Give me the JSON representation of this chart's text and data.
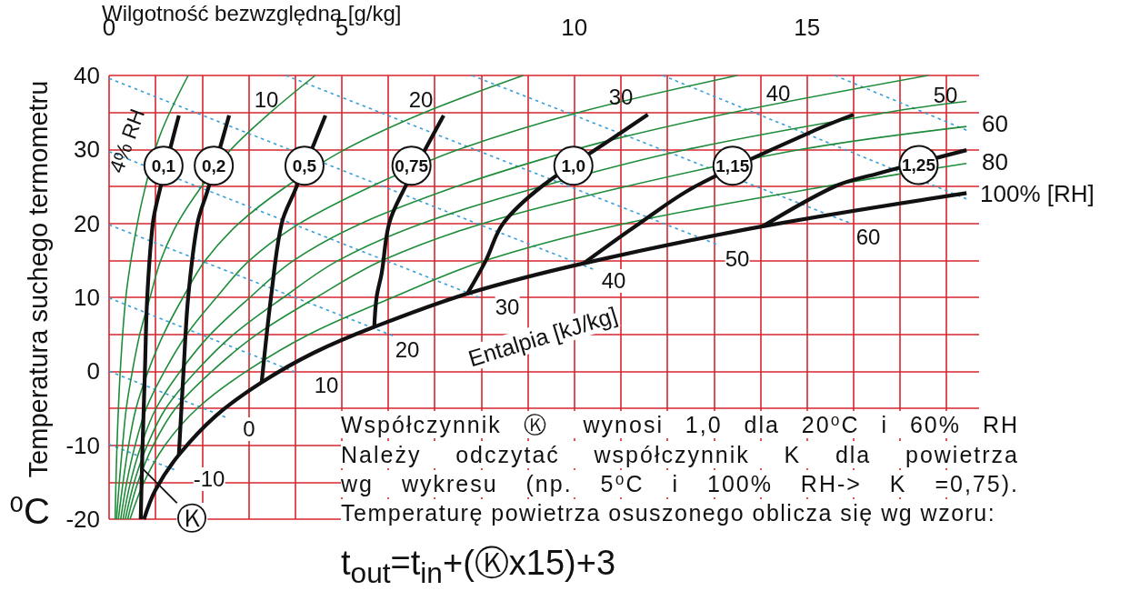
{
  "chart_data": {
    "type": "line",
    "xlabel": "Wilgotność bezwzględna [g/kg]",
    "ylabel": "Temperatura suchego termometru",
    "xlim": [
      0,
      18.7
    ],
    "xticks": [
      0,
      {
        "value": 1,
        "label": null
      },
      {
        "value": 2,
        "label": null
      },
      {
        "value": 3,
        "label": null
      },
      {
        "value": 4,
        "label": null
      },
      5,
      {
        "value": 6,
        "label": null
      },
      {
        "value": 7,
        "label": null
      },
      {
        "value": 8,
        "label": null
      },
      {
        "value": 9,
        "label": null
      },
      10,
      {
        "value": 11,
        "label": null
      },
      {
        "value": 12,
        "label": null
      },
      {
        "value": 13,
        "label": null
      },
      {
        "value": 14,
        "label": null
      },
      15,
      {
        "value": 16,
        "label": null
      },
      {
        "value": 17,
        "label": null
      },
      {
        "value": 18,
        "label": null
      }
    ],
    "ylim": [
      -20,
      40
    ],
    "yticks": [
      -20,
      {
        "value": -15,
        "label": null
      },
      -10,
      {
        "value": -5,
        "label": null
      },
      0,
      {
        "value": 5,
        "label": null
      },
      10,
      {
        "value": 15,
        "label": null
      },
      20,
      {
        "value": 25,
        "label": null
      },
      30,
      {
        "value": 35,
        "label": null
      },
      40
    ],
    "grid": true,
    "marker": "none",
    "series": [
      {
        "color": "#3b9fd6",
        "line_style": "dotted",
        "x": [
          0,
          1.4
        ],
        "values": [
          -9.9,
          -13.3
        ]
      },
      {
        "color": "#3b9fd6",
        "line_style": "dotted",
        "x": [
          0,
          2.5
        ],
        "values": [
          0,
          -6.2
        ]
      },
      {
        "color": "#3b9fd6",
        "line_style": "dotted",
        "x": [
          0,
          4.0
        ],
        "values": [
          9.9,
          -0.1
        ]
      },
      {
        "color": "#3b9fd6",
        "line_style": "dotted",
        "x": [
          0,
          6.1
        ],
        "values": [
          19.8,
          4.8
        ]
      },
      {
        "color": "#3b9fd6",
        "line_style": "dotted",
        "x": [
          0,
          7.95
        ],
        "values": [
          29.7,
          10.0
        ]
      },
      {
        "color": "#3b9fd6",
        "line_style": "dotted",
        "x": [
          0,
          10.4
        ],
        "values": [
          39.6,
          13.8
        ]
      },
      {
        "color": "#3b9fd6",
        "line_style": "dotted",
        "x": [
          3.8,
          13.05
        ],
        "values": [
          40,
          17.2
        ]
      },
      {
        "color": "#3b9fd6",
        "line_style": "dotted",
        "x": [
          7.8,
          15.9
        ],
        "values": [
          40,
          20.1
        ]
      },
      {
        "color": "#3b9fd6",
        "line_style": "dotted",
        "x": [
          11.9,
          18.43
        ],
        "values": [
          40,
          23.3
        ]
      },
      {
        "color": "#3b9fd6",
        "line_style": "dotted",
        "x": [
          15.6,
          18.43
        ],
        "values": [
          40,
          32.6
        ]
      },
      {
        "color": "#1e8c3a",
        "x": [
          0.13,
          0.17,
          0.24,
          0.36,
          0.55,
          0.76,
          1.1,
          1.7
        ],
        "values": [
          -20,
          -10,
          0,
          10,
          18,
          24.4,
          32,
          40
        ]
      },
      {
        "color": "#1e8c3a",
        "x": [
          0.16,
          0.22,
          0.29,
          0.37,
          0.5,
          0.66,
          0.88,
          1.11,
          1.47,
          1.99,
          2.62,
          3.47,
          4.43
        ],
        "values": [
          -20,
          -15,
          -10,
          -5,
          0,
          5,
          10,
          15,
          20,
          25,
          30,
          35,
          40
        ]
      },
      {
        "color": "#1e8c3a",
        "x": [
          0.2,
          0.3,
          0.42,
          0.58,
          0.84,
          1.17,
          1.59,
          2.07,
          2.79,
          3.81,
          5.07,
          6.78,
          8.9
        ],
        "values": [
          -20,
          -15,
          -10,
          -5,
          0,
          5,
          10,
          15,
          20,
          25,
          30,
          35,
          40
        ]
      },
      {
        "color": "#1e8c3a",
        "x": [
          0.25,
          0.38,
          0.56,
          0.8,
          1.19,
          1.67,
          2.31,
          3.02,
          4.1,
          5.64,
          7.52,
          10.09,
          13.5
        ],
        "values": [
          -20,
          -15,
          -10,
          -5,
          0,
          5,
          10,
          15,
          20,
          25,
          30,
          35,
          40
        ]
      },
      {
        "color": "#1e8c3a",
        "x": [
          0.3,
          0.46,
          0.69,
          1.01,
          1.53,
          2.18,
          3.03,
          3.97,
          5.42,
          7.47,
          9.48,
          10.93,
          13.4,
          17.6
        ],
        "values": [
          -20,
          -15,
          -10,
          -5,
          0,
          5,
          10,
          15,
          20,
          25,
          29,
          31.5,
          35,
          40
        ]
      },
      {
        "color": "#1e8c3a",
        "x": [
          0.35,
          0.54,
          0.82,
          1.22,
          1.87,
          2.68,
          3.75,
          4.93,
          6.73,
          9.3,
          12.43,
          16.71,
          18.43
        ],
        "values": [
          -20,
          -15,
          -10,
          -5,
          0,
          5,
          10,
          15,
          20,
          25,
          30,
          35,
          36.5
        ]
      },
      {
        "color": "#1e8c3a",
        "x": [
          0.4,
          0.62,
          0.95,
          1.43,
          2.21,
          3.18,
          4.46,
          5.88,
          8.04,
          11.12,
          14.88,
          18.43
        ],
        "values": [
          -20,
          -15,
          -10,
          -5,
          0,
          5,
          10,
          15,
          20,
          25,
          30,
          33.1
        ]
      },
      {
        "color": "#1e8c3a",
        "x": [
          0.45,
          0.75,
          1.2,
          1.9,
          2.95,
          4.3,
          6.1,
          8.1,
          11.1,
          15.4,
          18.43
        ],
        "values": [
          -20,
          -15,
          -10,
          -5,
          0,
          5,
          10,
          15,
          20,
          25,
          28.1
        ]
      },
      {
        "color": "#111111",
        "x": [
          0.75,
          1.0,
          1.5,
          2.3,
          3.28,
          4.4,
          5.7,
          7.7,
          10.2,
          14.05,
          18.43
        ],
        "values": [
          -20,
          -16,
          -11.3,
          -6,
          -1.5,
          2.5,
          6,
          10.5,
          14.6,
          19.6,
          24.1
        ]
      },
      {
        "color": "#111111",
        "x": [
          0.68,
          0.72,
          0.77,
          0.82,
          0.94,
          1.09,
          1.35,
          1.5
        ],
        "values": [
          -20,
          -10,
          0,
          10,
          20,
          24.5,
          31,
          34.6
        ]
      },
      {
        "color": "#111111",
        "x": [
          1.5,
          1.6,
          1.7,
          1.9,
          2.12,
          2.42,
          2.58
        ],
        "values": [
          -11.3,
          0,
          10,
          20,
          24.5,
          31,
          34.6
        ]
      },
      {
        "color": "#111111",
        "x": [
          3.28,
          3.48,
          3.71,
          4.0,
          4.42,
          4.65
        ],
        "values": [
          -1.5,
          10,
          20,
          24.5,
          31,
          34.6
        ]
      },
      {
        "color": "#111111",
        "x": [
          5.7,
          5.75,
          5.86,
          6.02,
          6.33,
          6.88,
          7.19
        ],
        "values": [
          6.0,
          10,
          13.3,
          20,
          24.5,
          31,
          34.6
        ]
      },
      {
        "color": "#111111",
        "x": [
          7.7,
          8.1,
          8.47,
          9.3,
          10.7,
          11.58
        ],
        "values": [
          10.5,
          15,
          20,
          25,
          31,
          34.7
        ]
      },
      {
        "color": "#111111",
        "x": [
          10.2,
          11.4,
          12.6,
          15.1,
          16.0
        ],
        "values": [
          14.6,
          20,
          25,
          32.4,
          34.7
        ]
      },
      {
        "color": "#111111",
        "x": [
          14.05,
          15.6,
          16.5,
          18.43
        ],
        "values": [
          19.6,
          25,
          26.7,
          29.9
        ]
      }
    ],
    "annotations": [
      "4% RH",
      "10",
      "20",
      "30",
      "40",
      "50",
      "60",
      "80",
      "100% [RH]",
      "-10",
      "0",
      "10",
      "20",
      "30",
      "40",
      "50",
      "60",
      "Entalpia [kJ/kg]",
      {
        "text": "0,1",
        "x": 1.17,
        "y": 27.8
      },
      {
        "text": "0,2",
        "x": 2.25,
        "y": 27.8
      },
      {
        "text": "0,5",
        "x": 4.2,
        "y": 27.8
      },
      {
        "text": "0,75",
        "x": 6.5,
        "y": 27.8
      },
      {
        "text": "1,0",
        "x": 9.98,
        "y": 27.8
      },
      {
        "text": "1,15",
        "x": 13.4,
        "y": 27.8
      },
      {
        "text": "1,25",
        "x": 17.4,
        "y": 27.9
      },
      {
        "text": "Ⓚ",
        "x": 0.71,
        "y": -13.1
      },
      "⁰C",
      "Współczynnik Ⓚ wynosi 1,0 dla 20⁰C i 60% RH",
      "Należy odczytać współczynnik K dla powietrza",
      "wg wykresu (np. 5⁰C i 100% RH-> K =0,75).",
      "Temperaturę powietrza osuszonego oblicza się wg wzoru:",
      "t$_{out}$=t$_{in}$+(Ⓚx15)+3"
    ]
  }
}
